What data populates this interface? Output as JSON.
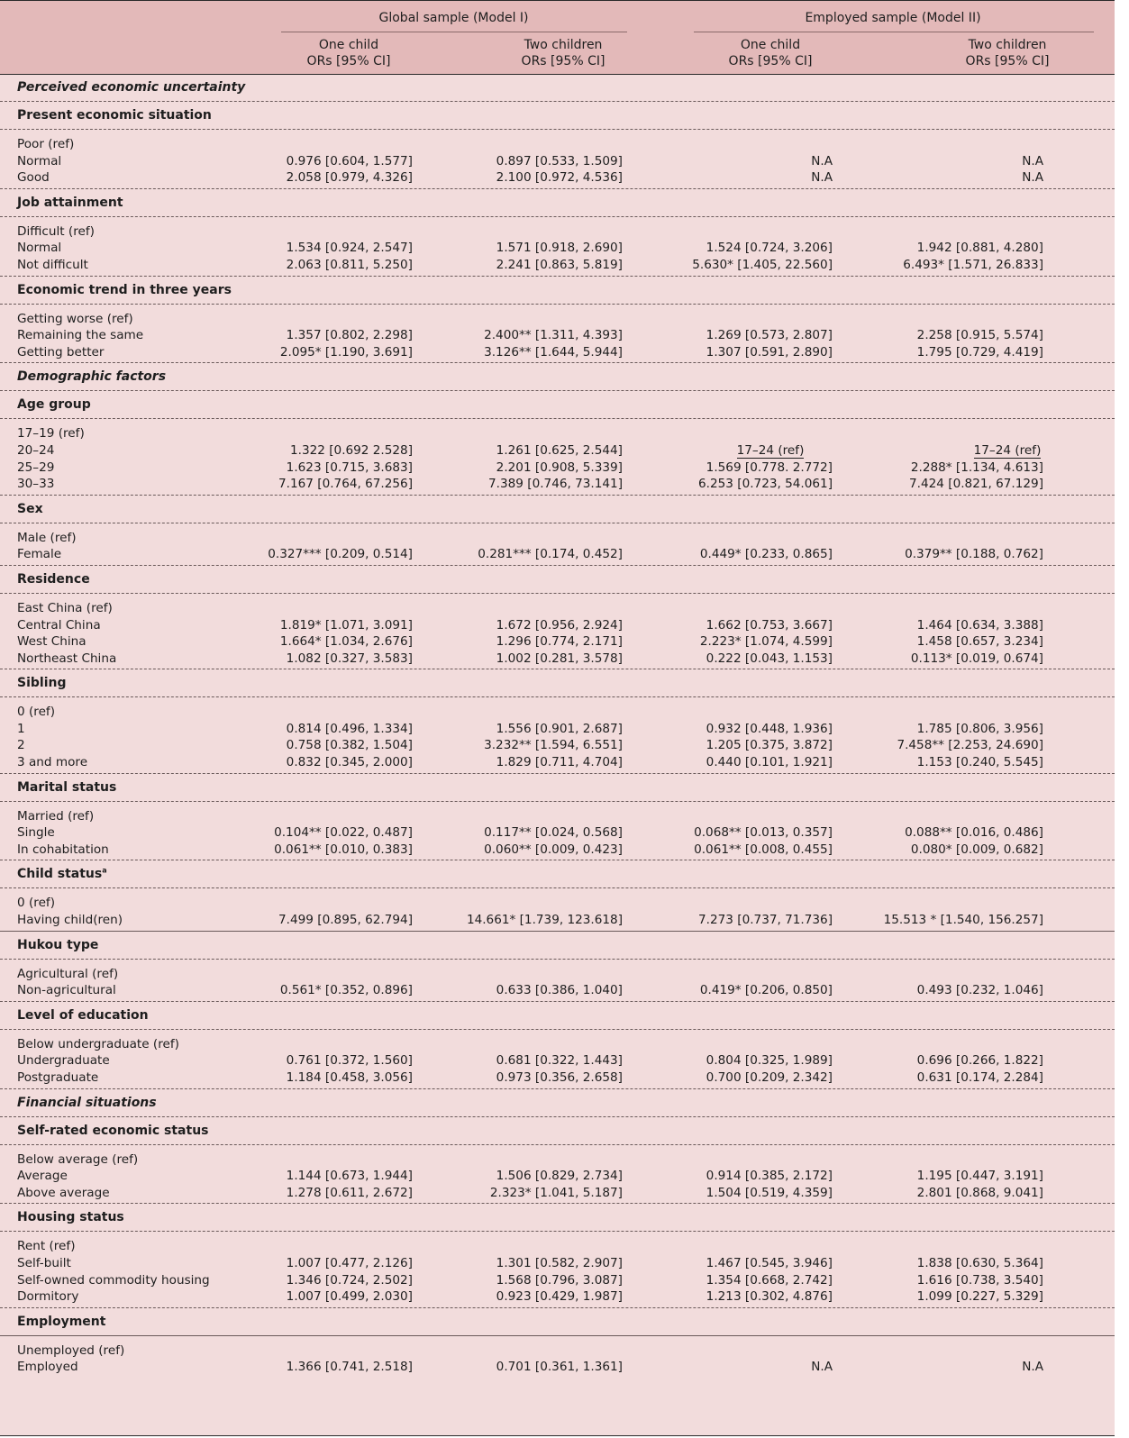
{
  "header": {
    "model1": "Global sample (Model I)",
    "model2": "Employed sample (Model II)",
    "cols": [
      {
        "top": "One child",
        "bottom": "ORs [95% CI]"
      },
      {
        "top": "Two children",
        "bottom": "ORs [95% CI]"
      },
      {
        "top": "One child",
        "bottom": "ORs [95% CI]"
      },
      {
        "top": "Two children",
        "bottom": "ORs [95% CI]"
      }
    ]
  },
  "sections": {
    "perceived": "Perceived economic uncertainty",
    "present": "Present economic situation",
    "job": "Job attainment",
    "trend": "Economic trend in three years",
    "demographic": "Demographic factors",
    "age": "Age group",
    "sex": "Sex",
    "residence": "Residence",
    "sibling": "Sibling",
    "marital": "Marital status",
    "child": "Child status",
    "child_sup": "a",
    "hukou": "Hukou type",
    "education": "Level of education",
    "financial": "Financial situations",
    "selfrated": "Self-rated economic status",
    "housing": "Housing status",
    "employment": "Employment"
  },
  "rows": {
    "present": [
      [
        "Poor (ref)",
        "",
        "",
        "",
        ""
      ],
      [
        "Normal",
        "0.976 [0.604, 1.577]",
        "0.897 [0.533, 1.509]",
        "N.A",
        "N.A"
      ],
      [
        "Good",
        "2.058 [0.979, 4.326]",
        "2.100 [0.972, 4.536]",
        "N.A",
        "N.A"
      ]
    ],
    "job": [
      [
        "Difficult (ref)",
        "",
        "",
        "",
        ""
      ],
      [
        "Normal",
        "1.534 [0.924, 2.547]",
        "1.571 [0.918, 2.690]",
        "1.524 [0.724, 3.206]",
        "1.942 [0.881, 4.280]"
      ],
      [
        "Not difficult",
        "2.063 [0.811, 5.250]",
        "2.241 [0.863, 5.819]",
        "5.630* [1.405, 22.560]",
        "6.493* [1.571, 26.833]"
      ]
    ],
    "trend": [
      [
        "Getting worse (ref)",
        "",
        "",
        "",
        ""
      ],
      [
        "Remaining the same",
        "1.357 [0.802, 2.298]",
        "2.400** [1.311, 4.393]",
        "1.269 [0.573, 2.807]",
        "2.258 [0.915, 5.574]"
      ],
      [
        "Getting better",
        "2.095* [1.190, 3.691]",
        "3.126** [1.644, 5.944]",
        "1.307 [0.591, 2.890]",
        "1.795 [0.729, 4.419]"
      ]
    ],
    "age": [
      [
        "17–19 (ref)",
        "",
        "",
        "",
        ""
      ],
      [
        "20–24",
        "1.322 [0.692 2.528]",
        "1.261 [0.625, 2.544]",
        "",
        ""
      ],
      [
        "25–29",
        "1.623 [0.715, 3.683]",
        "2.201 [0.908, 5.339]",
        "1.569 [0.778. 2.772]",
        "2.288* [1.134, 4.613]"
      ],
      [
        "30–33",
        "7.167 [0.764, 67.256]",
        "7.389 [0.746, 73.141]",
        "6.253 [0.723, 54.061]",
        "7.424 [0.821, 67.129]"
      ]
    ],
    "age_ref_employed": "17–24 (ref)",
    "sex": [
      [
        "Male (ref)",
        "",
        "",
        "",
        ""
      ],
      [
        "Female",
        "0.327*** [0.209, 0.514]",
        "0.281*** [0.174, 0.452]",
        "0.449* [0.233, 0.865]",
        "0.379** [0.188, 0.762]"
      ]
    ],
    "residence": [
      [
        "East China (ref)",
        "",
        "",
        "",
        ""
      ],
      [
        "Central China",
        "1.819* [1.071, 3.091]",
        "1.672 [0.956, 2.924]",
        "1.662 [0.753, 3.667]",
        "1.464 [0.634, 3.388]"
      ],
      [
        "West China",
        "1.664* [1.034, 2.676]",
        "1.296 [0.774, 2.171]",
        "2.223* [1.074, 4.599]",
        "1.458 [0.657, 3.234]"
      ],
      [
        "Northeast China",
        "1.082 [0.327, 3.583]",
        "1.002 [0.281, 3.578]",
        "0.222 [0.043, 1.153]",
        "0.113* [0.019, 0.674]"
      ]
    ],
    "sibling": [
      [
        "0 (ref)",
        "",
        "",
        "",
        ""
      ],
      [
        "1",
        "0.814 [0.496, 1.334]",
        "1.556 [0.901, 2.687]",
        "0.932 [0.448, 1.936]",
        "1.785 [0.806, 3.956]"
      ],
      [
        "2",
        "0.758 [0.382, 1.504]",
        "3.232** [1.594, 6.551]",
        "1.205 [0.375, 3.872]",
        "7.458** [2.253, 24.690]"
      ],
      [
        "3 and more",
        "0.832 [0.345, 2.000]",
        "1.829 [0.711, 4.704]",
        "0.440 [0.101, 1.921]",
        "1.153 [0.240, 5.545]"
      ]
    ],
    "marital": [
      [
        "Married (ref)",
        "",
        "",
        "",
        ""
      ],
      [
        "Single",
        "0.104** [0.022, 0.487]",
        "0.117** [0.024, 0.568]",
        "0.068** [0.013, 0.357]",
        "0.088** [0.016, 0.486]"
      ],
      [
        "In cohabitation",
        "0.061** [0.010, 0.383]",
        "0.060** [0.009, 0.423]",
        "0.061** [0.008, 0.455]",
        "0.080* [0.009, 0.682]"
      ]
    ],
    "child": [
      [
        "0 (ref)",
        "",
        "",
        "",
        ""
      ],
      [
        "Having child(ren)",
        "7.499 [0.895, 62.794]",
        "14.661* [1.739, 123.618]",
        "7.273 [0.737, 71.736]",
        "15.513 * [1.540, 156.257]"
      ]
    ],
    "hukou": [
      [
        "Agricultural (ref)",
        "",
        "",
        "",
        ""
      ],
      [
        "Non-agricultural",
        "0.561* [0.352, 0.896]",
        "0.633 [0.386, 1.040]",
        "0.419* [0.206, 0.850]",
        "0.493 [0.232, 1.046]"
      ]
    ],
    "education": [
      [
        "Below undergraduate (ref)",
        "",
        "",
        "",
        ""
      ],
      [
        "Undergraduate",
        "0.761 [0.372, 1.560]",
        "0.681 [0.322, 1.443]",
        "0.804 [0.325, 1.989]",
        "0.696 [0.266, 1.822]"
      ],
      [
        "Postgraduate",
        "1.184 [0.458, 3.056]",
        "0.973 [0.356, 2.658]",
        "0.700 [0.209, 2.342]",
        "0.631 [0.174, 2.284]"
      ]
    ],
    "selfrated": [
      [
        "Below average (ref)",
        "",
        "",
        "",
        ""
      ],
      [
        "Average",
        "1.144 [0.673, 1.944]",
        "1.506 [0.829, 2.734]",
        "0.914 [0.385, 2.172]",
        "1.195 [0.447, 3.191]"
      ],
      [
        "Above average",
        "1.278 [0.611, 2.672]",
        "2.323* [1.041, 5.187]",
        "1.504 [0.519, 4.359]",
        "2.801 [0.868, 9.041]"
      ]
    ],
    "housing": [
      [
        "Rent (ref)",
        "",
        "",
        "",
        ""
      ],
      [
        "Self-built",
        "1.007 [0.477, 2.126]",
        "1.301 [0.582, 2.907]",
        "1.467 [0.545, 3.946]",
        "1.838 [0.630, 5.364]"
      ],
      [
        "Self-owned commodity housing",
        "1.346 [0.724, 2.502]",
        "1.568 [0.796, 3.087]",
        "1.354 [0.668, 2.742]",
        "1.616 [0.738, 3.540]"
      ],
      [
        "Dormitory",
        "1.007 [0.499, 2.030]",
        "0.923 [0.429, 1.987]",
        "1.213 [0.302, 4.876]",
        "1.099 [0.227, 5.329]"
      ]
    ],
    "employment": [
      [
        "Unemployed (ref)",
        "",
        "",
        "",
        ""
      ],
      [
        "Employed",
        "1.366 [0.741, 2.518]",
        "0.701 [0.361, 1.361]",
        "N.A",
        "N.A"
      ]
    ]
  }
}
